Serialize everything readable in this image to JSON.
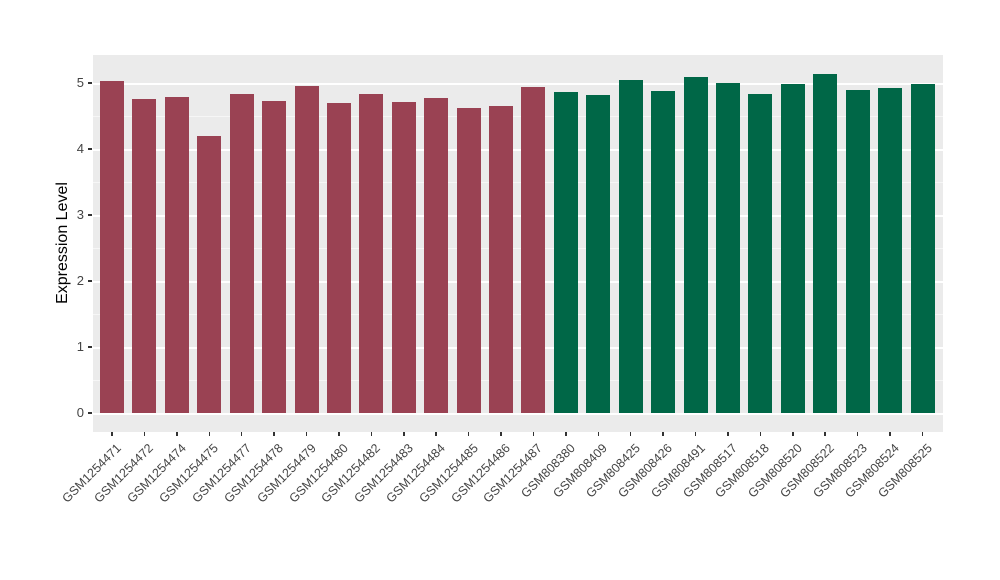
{
  "chart_data": {
    "type": "bar",
    "title": "",
    "xlabel": "",
    "ylabel": "Expression Level",
    "ylim": [
      0,
      5.4
    ],
    "yticks": [
      0,
      1,
      2,
      3,
      4,
      5
    ],
    "minor_ticks": [
      0.5,
      1.5,
      2.5,
      3.5,
      4.5
    ],
    "grid": true,
    "legend": false,
    "legend_position": "none",
    "plot_background": "#EBEBEB",
    "gridline_color": "#FFFFFF",
    "axis_text_color": "#444444",
    "categories": [
      "GSM1254471",
      "GSM1254472",
      "GSM1254474",
      "GSM1254475",
      "GSM1254477",
      "GSM1254478",
      "GSM1254479",
      "GSM1254480",
      "GSM1254482",
      "GSM1254483",
      "GSM1254484",
      "GSM1254485",
      "GSM1254486",
      "GSM1254487",
      "GSM808380",
      "GSM808409",
      "GSM808425",
      "GSM808426",
      "GSM808491",
      "GSM808517",
      "GSM808518",
      "GSM808520",
      "GSM808522",
      "GSM808523",
      "GSM808524",
      "GSM808525"
    ],
    "values": [
      5.03,
      4.76,
      4.79,
      4.2,
      4.83,
      4.73,
      4.95,
      4.7,
      4.84,
      4.71,
      4.78,
      4.62,
      4.65,
      4.94,
      4.87,
      4.82,
      5.04,
      4.88,
      5.09,
      5.0,
      4.83,
      4.98,
      5.14,
      4.89,
      4.93,
      4.98
    ],
    "bar_colors": [
      "#9A4253",
      "#9A4253",
      "#9A4253",
      "#9A4253",
      "#9A4253",
      "#9A4253",
      "#9A4253",
      "#9A4253",
      "#9A4253",
      "#9A4253",
      "#9A4253",
      "#9A4253",
      "#9A4253",
      "#9A4253",
      "#006747",
      "#006747",
      "#006747",
      "#006747",
      "#006747",
      "#006747",
      "#006747",
      "#006747",
      "#006747",
      "#006747",
      "#006747",
      "#006747"
    ]
  }
}
